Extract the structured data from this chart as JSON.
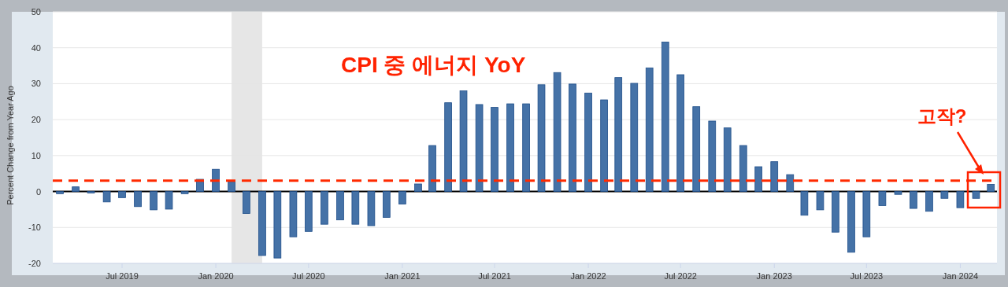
{
  "chart_data": {
    "type": "bar",
    "title": "CPI 중 에너지 YoY",
    "ylabel": "Percent Change from Year Ago",
    "x": [
      "2019-03",
      "2019-04",
      "2019-05",
      "2019-06",
      "2019-07",
      "2019-08",
      "2019-09",
      "2019-10",
      "2019-11",
      "2019-12",
      "2020-01",
      "2020-02",
      "2020-03",
      "2020-04",
      "2020-05",
      "2020-06",
      "2020-07",
      "2020-08",
      "2020-09",
      "2020-10",
      "2020-11",
      "2020-12",
      "2021-01",
      "2021-02",
      "2021-03",
      "2021-04",
      "2021-05",
      "2021-06",
      "2021-07",
      "2021-08",
      "2021-09",
      "2021-10",
      "2021-11",
      "2021-12",
      "2022-01",
      "2022-02",
      "2022-03",
      "2022-04",
      "2022-05",
      "2022-06",
      "2022-07",
      "2022-08",
      "2022-09",
      "2022-10",
      "2022-11",
      "2022-12",
      "2023-01",
      "2023-02",
      "2023-03",
      "2023-04",
      "2023-05",
      "2023-06",
      "2023-07",
      "2023-08",
      "2023-09",
      "2023-10",
      "2023-11",
      "2023-12",
      "2024-01",
      "2024-02",
      "2024-03"
    ],
    "series": [
      {
        "color": "#4572a7",
        "values": [
          -0.6,
          1.3,
          -0.4,
          -2.9,
          -1.7,
          -4.2,
          -5.1,
          -4.9,
          -0.6,
          3.4,
          6.2,
          2.8,
          -6.1,
          -17.8,
          -18.5,
          -12.6,
          -11.1,
          -9.1,
          -7.9,
          -9.1,
          -9.5,
          -7.2,
          -3.5,
          2.1,
          12.8,
          24.7,
          28.0,
          24.2,
          23.4,
          24.4,
          24.4,
          29.7,
          33.1,
          29.9,
          27.4,
          25.5,
          31.7,
          30.1,
          34.4,
          41.6,
          32.5,
          23.6,
          19.6,
          17.7,
          12.8,
          6.9,
          8.3,
          4.7,
          -6.6,
          -5.1,
          -11.3,
          -16.9,
          -12.6,
          -3.9,
          -0.8,
          -4.7,
          -5.5,
          -1.9,
          -4.5,
          -1.9,
          2.0
        ]
      }
    ],
    "xlim": [
      "2019-02-15",
      "2024-03-13"
    ],
    "xticks": [
      {
        "value": "2019-07",
        "label": "Jul 2019"
      },
      {
        "value": "2020-01",
        "label": "Jan 2020"
      },
      {
        "value": "2020-07",
        "label": "Jul 2020"
      },
      {
        "value": "2021-01",
        "label": "Jan 2021"
      },
      {
        "value": "2021-07",
        "label": "Jul 2021"
      },
      {
        "value": "2022-01",
        "label": "Jan 2022"
      },
      {
        "value": "2022-07",
        "label": "Jul 2022"
      },
      {
        "value": "2023-01",
        "label": "Jan 2023"
      },
      {
        "value": "2023-07",
        "label": "Jul 2023"
      },
      {
        "value": "2024-01",
        "label": "Jan 2024"
      }
    ],
    "ylim": [
      -20,
      50
    ],
    "yticks": [
      -20,
      -10,
      0,
      10,
      20,
      30,
      40,
      50
    ],
    "grid": "y",
    "ref_lines": [
      {
        "axis": "y",
        "value": 3,
        "color": "#ff2a00",
        "line_style": "dashed"
      }
    ],
    "bands": [
      {
        "axis": "x",
        "from": "2020-02",
        "to": "2020-04",
        "color": "#e6e6e6"
      }
    ],
    "annotations": [
      "고작?"
    ]
  }
}
